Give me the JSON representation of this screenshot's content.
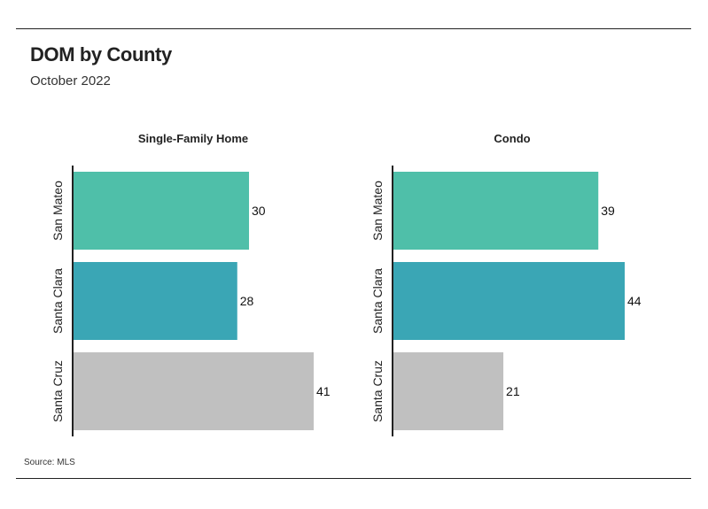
{
  "title": "DOM by County",
  "subtitle": "October 2022",
  "source": "Source: MLS",
  "colors": {
    "San Mateo": "#4fbfa9",
    "Santa Clara": "#3aa6b5",
    "Santa Cruz": "#c0c0c0",
    "axis": "#222222"
  },
  "chart_data": [
    {
      "type": "bar",
      "orientation": "horizontal",
      "title": "Single-Family Home",
      "categories": [
        "San Mateo",
        "Santa Clara",
        "Santa Cruz"
      ],
      "values": [
        30,
        28,
        41
      ],
      "xlim": [
        0,
        41
      ],
      "grid": false
    },
    {
      "type": "bar",
      "orientation": "horizontal",
      "title": "Condo",
      "categories": [
        "San Mateo",
        "Santa Clara",
        "Santa Cruz"
      ],
      "values": [
        39,
        44,
        21
      ],
      "xlim": [
        0,
        44
      ],
      "grid": false
    }
  ]
}
